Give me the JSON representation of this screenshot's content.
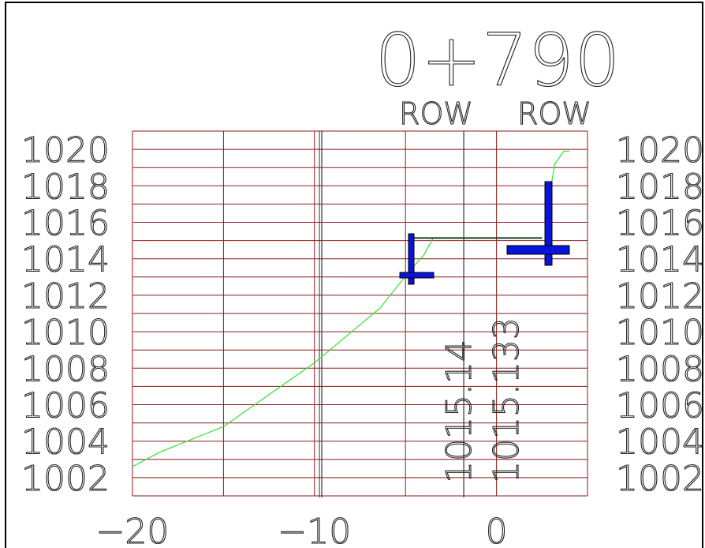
{
  "station_label": "0+790",
  "row_labels": [
    "ROW",
    "ROW"
  ],
  "y_axis": {
    "ticks": [
      "1020",
      "1018",
      "1016",
      "1014",
      "1012",
      "1010",
      "1008",
      "1006",
      "1004",
      "1002"
    ],
    "range": [
      1001,
      1021
    ]
  },
  "x_axis": {
    "ticks": [
      "-20",
      "-10",
      "0"
    ],
    "range": [
      -20,
      5
    ]
  },
  "elevation_labels": [
    "1015.14",
    "1015.133"
  ],
  "chart_data": {
    "type": "line",
    "title": "0+790",
    "xlabel": "",
    "ylabel": "",
    "xlim": [
      -20,
      5
    ],
    "ylim": [
      1001,
      1021
    ],
    "grid": true,
    "row_offsets": [
      -9.6,
      -1.8
    ],
    "series": [
      {
        "points": [
          [
            -20,
            1002.6
          ],
          [
            -18.5,
            1003.4
          ],
          [
            -15,
            1004.8
          ],
          [
            -10,
            1008.3
          ],
          [
            -6.4,
            1011.3
          ],
          [
            -4.8,
            1013.3
          ],
          [
            -4.0,
            1014.2
          ],
          [
            -3.5,
            1015.1
          ]
        ]
      },
      {
        "points": [
          [
            2.7,
            1017.0
          ],
          [
            3.0,
            1018.0
          ],
          [
            3.2,
            1019.2
          ],
          [
            3.7,
            1019.9
          ],
          [
            4.0,
            1019.9
          ]
        ]
      },
      {
        "points": [
          [
            -4.8,
            1015.14
          ],
          [
            2.5,
            1015.14
          ]
        ]
      }
    ],
    "annotations": [
      "1015.14",
      "1015.133"
    ]
  },
  "colors": {
    "grid": "#8b1a1a",
    "ground_line": "#2ee62e",
    "design_line": "#1a3a1a",
    "marker": "#0a14d8",
    "text": "#222222",
    "frame": "#000000"
  }
}
